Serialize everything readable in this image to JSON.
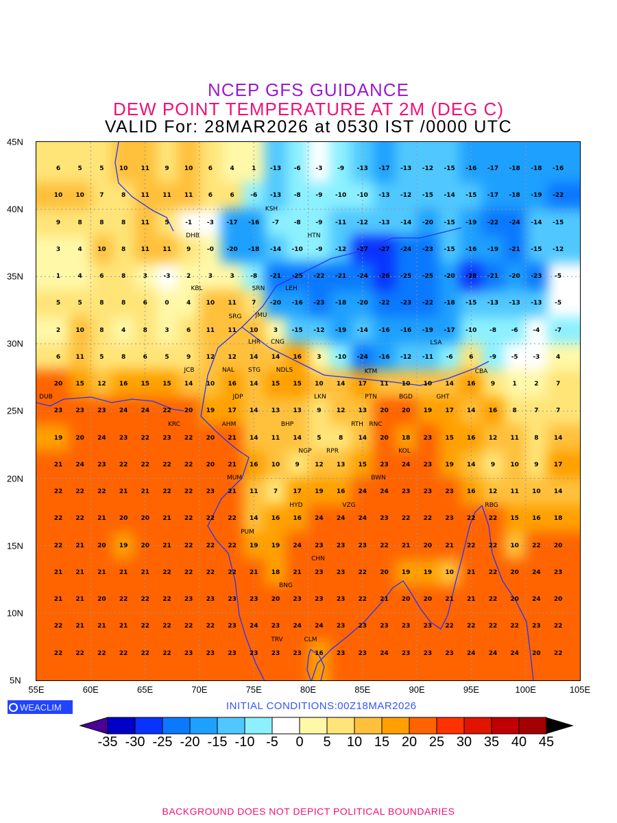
{
  "header": {
    "line1": "NCEP GFS GUIDANCE",
    "line2": "DEW POINT TEMPERATURE AT 2M (DEG C)",
    "line3": "VALID For: 28MAR2026 at 0530 IST /0000 UTC"
  },
  "axes": {
    "lat_labels": [
      "45N",
      "40N",
      "35N",
      "30N",
      "25N",
      "20N",
      "15N",
      "10N",
      "5N"
    ],
    "lon_labels": [
      "55E",
      "60E",
      "65E",
      "70E",
      "75E",
      "80E",
      "85E",
      "90E",
      "95E",
      "100E",
      "105E"
    ]
  },
  "logo": "WEACLIM",
  "initial_conditions": "INITIAL CONDITIONS:00Z18MAR2026",
  "colorbar": {
    "labels": [
      "-35",
      "-30",
      "-25",
      "-20",
      "-15",
      "-10",
      "-5",
      "0",
      "5",
      "10",
      "15",
      "20",
      "25",
      "30",
      "35",
      "40",
      "45"
    ],
    "under_color": "#4b0096",
    "over_color": "#000000",
    "colors": [
      "#0000c8",
      "#0a32ff",
      "#0a78ff",
      "#1ea0ff",
      "#50c8ff",
      "#8cf0ff",
      "#ffffff",
      "#fff8a8",
      "#ffe478",
      "#ffc03c",
      "#ffa000",
      "#ff6400",
      "#ff3200",
      "#e11400",
      "#c00000",
      "#a50000"
    ]
  },
  "footer": "BACKGROUND DOES NOT DEPICT POLITICAL BOUNDARIES",
  "cities": [
    "KSH",
    "DHB",
    "HTN",
    "KBL",
    "SRN",
    "LEH",
    "JMU",
    "SRG",
    "LHR",
    "CNG",
    "STG",
    "NAL",
    "JCB",
    "NDLS",
    "LSA",
    "KTM",
    "CBA",
    "JDP",
    "LKN",
    "BGD",
    "GHT",
    "DUB",
    "KRC",
    "PTN",
    "RTH",
    "AHM",
    "BHP",
    "RNC",
    "KOL",
    "NGP",
    "RPR",
    "BWN",
    "MUM",
    "HYD",
    "VZG",
    "RBG",
    "PUM",
    "CHN",
    "BNG",
    "TRV",
    "CLM"
  ],
  "grid_values": [
    [
      6,
      5,
      5,
      10,
      11,
      9,
      10,
      6,
      4,
      1,
      -13,
      -6,
      -3,
      -9,
      -13,
      -17,
      -13,
      -12,
      -15,
      -16,
      -17,
      -18,
      -18,
      -16
    ],
    [
      10,
      10,
      7,
      8,
      11,
      11,
      11,
      6,
      6,
      -6,
      -13,
      -8,
      -9,
      -10,
      -10,
      -13,
      -12,
      -15,
      -14,
      -15,
      -17,
      -18,
      -19,
      -22
    ],
    [
      9,
      8,
      8,
      8,
      11,
      5,
      -1,
      -3,
      -17,
      -16,
      -7,
      -8,
      -9,
      -11,
      -12,
      -13,
      -14,
      -20,
      -15,
      -19,
      -22,
      -24,
      -14,
      -15
    ],
    [
      3,
      4,
      10,
      8,
      11,
      11,
      9,
      0,
      -20,
      -18,
      -14,
      -10,
      -9,
      -12,
      -27,
      -27,
      -24,
      -23,
      -15,
      -16,
      -19,
      -21,
      -15,
      -12
    ],
    [
      1,
      4,
      6,
      8,
      3,
      -3,
      2,
      3,
      3,
      -8,
      -21,
      -25,
      -22,
      -21,
      -24,
      -26,
      -25,
      -25,
      -20,
      -28,
      -21,
      -20,
      -23,
      -5
    ],
    [
      5,
      5,
      8,
      8,
      6,
      0,
      4,
      10,
      11,
      7,
      -20,
      -16,
      -23,
      -18,
      -20,
      -22,
      -23,
      -22,
      -18,
      -15,
      -13,
      -13,
      -13,
      -5
    ],
    [
      2,
      10,
      8,
      4,
      8,
      3,
      6,
      11,
      11,
      10,
      3,
      -15,
      -12,
      -19,
      -14,
      -16,
      -16,
      -19,
      -17,
      -10,
      -8,
      -6,
      -4,
      -7
    ],
    [
      6,
      11,
      5,
      8,
      6,
      5,
      9,
      12,
      12,
      14,
      14,
      16,
      3,
      -10,
      -24,
      -16,
      -12,
      -11,
      -6,
      6,
      -9,
      -5,
      -3,
      4
    ],
    [
      20,
      15,
      12,
      16,
      15,
      15,
      14,
      10,
      16,
      14,
      15,
      15,
      10,
      14,
      17,
      11,
      10,
      10,
      14,
      16,
      9,
      1,
      2,
      7
    ],
    [
      23,
      23,
      23,
      24,
      24,
      22,
      20,
      19,
      17,
      14,
      13,
      13,
      9,
      12,
      13,
      20,
      20,
      19,
      17,
      14,
      16,
      8,
      7,
      7
    ],
    [
      19,
      20,
      24,
      23,
      22,
      23,
      22,
      20,
      21,
      14,
      11,
      14,
      5,
      8,
      14,
      20,
      18,
      23,
      15,
      16,
      12,
      11,
      8,
      14
    ],
    [
      21,
      24,
      23,
      22,
      22,
      22,
      22,
      20,
      21,
      16,
      10,
      9,
      12,
      13,
      15,
      23,
      24,
      23,
      19,
      14,
      9,
      10,
      9,
      17
    ],
    [
      22,
      22,
      22,
      21,
      21,
      22,
      22,
      23,
      21,
      11,
      7,
      17,
      19,
      16,
      24,
      24,
      23,
      23,
      23,
      16,
      12,
      11,
      10,
      14
    ],
    [
      22,
      22,
      21,
      20,
      20,
      21,
      22,
      22,
      22,
      14,
      16,
      16,
      24,
      24,
      24,
      23,
      22,
      22,
      23,
      22,
      22,
      15,
      16,
      18
    ],
    [
      22,
      21,
      20,
      19,
      20,
      21,
      22,
      22,
      22,
      19,
      19,
      24,
      23,
      23,
      23,
      22,
      21,
      20,
      21,
      22,
      22,
      10,
      22,
      20
    ],
    [
      21,
      21,
      21,
      21,
      21,
      22,
      22,
      22,
      22,
      21,
      18,
      21,
      23,
      23,
      22,
      20,
      19,
      19,
      10,
      21,
      22,
      20,
      24,
      23
    ],
    [
      21,
      21,
      20,
      22,
      22,
      22,
      23,
      23,
      23,
      23,
      20,
      23,
      23,
      23,
      22,
      21,
      20,
      20,
      21,
      21,
      22,
      20,
      24,
      20
    ],
    [
      22,
      21,
      21,
      21,
      22,
      22,
      22,
      22,
      23,
      24,
      23,
      24,
      24,
      23,
      23,
      23,
      23,
      23,
      22,
      22,
      22,
      22,
      23,
      22
    ],
    [
      22,
      22,
      22,
      22,
      22,
      22,
      23,
      23,
      23,
      23,
      23,
      23,
      16,
      23,
      23,
      24,
      23,
      23,
      23,
      24,
      24,
      24,
      20,
      22
    ]
  ]
}
